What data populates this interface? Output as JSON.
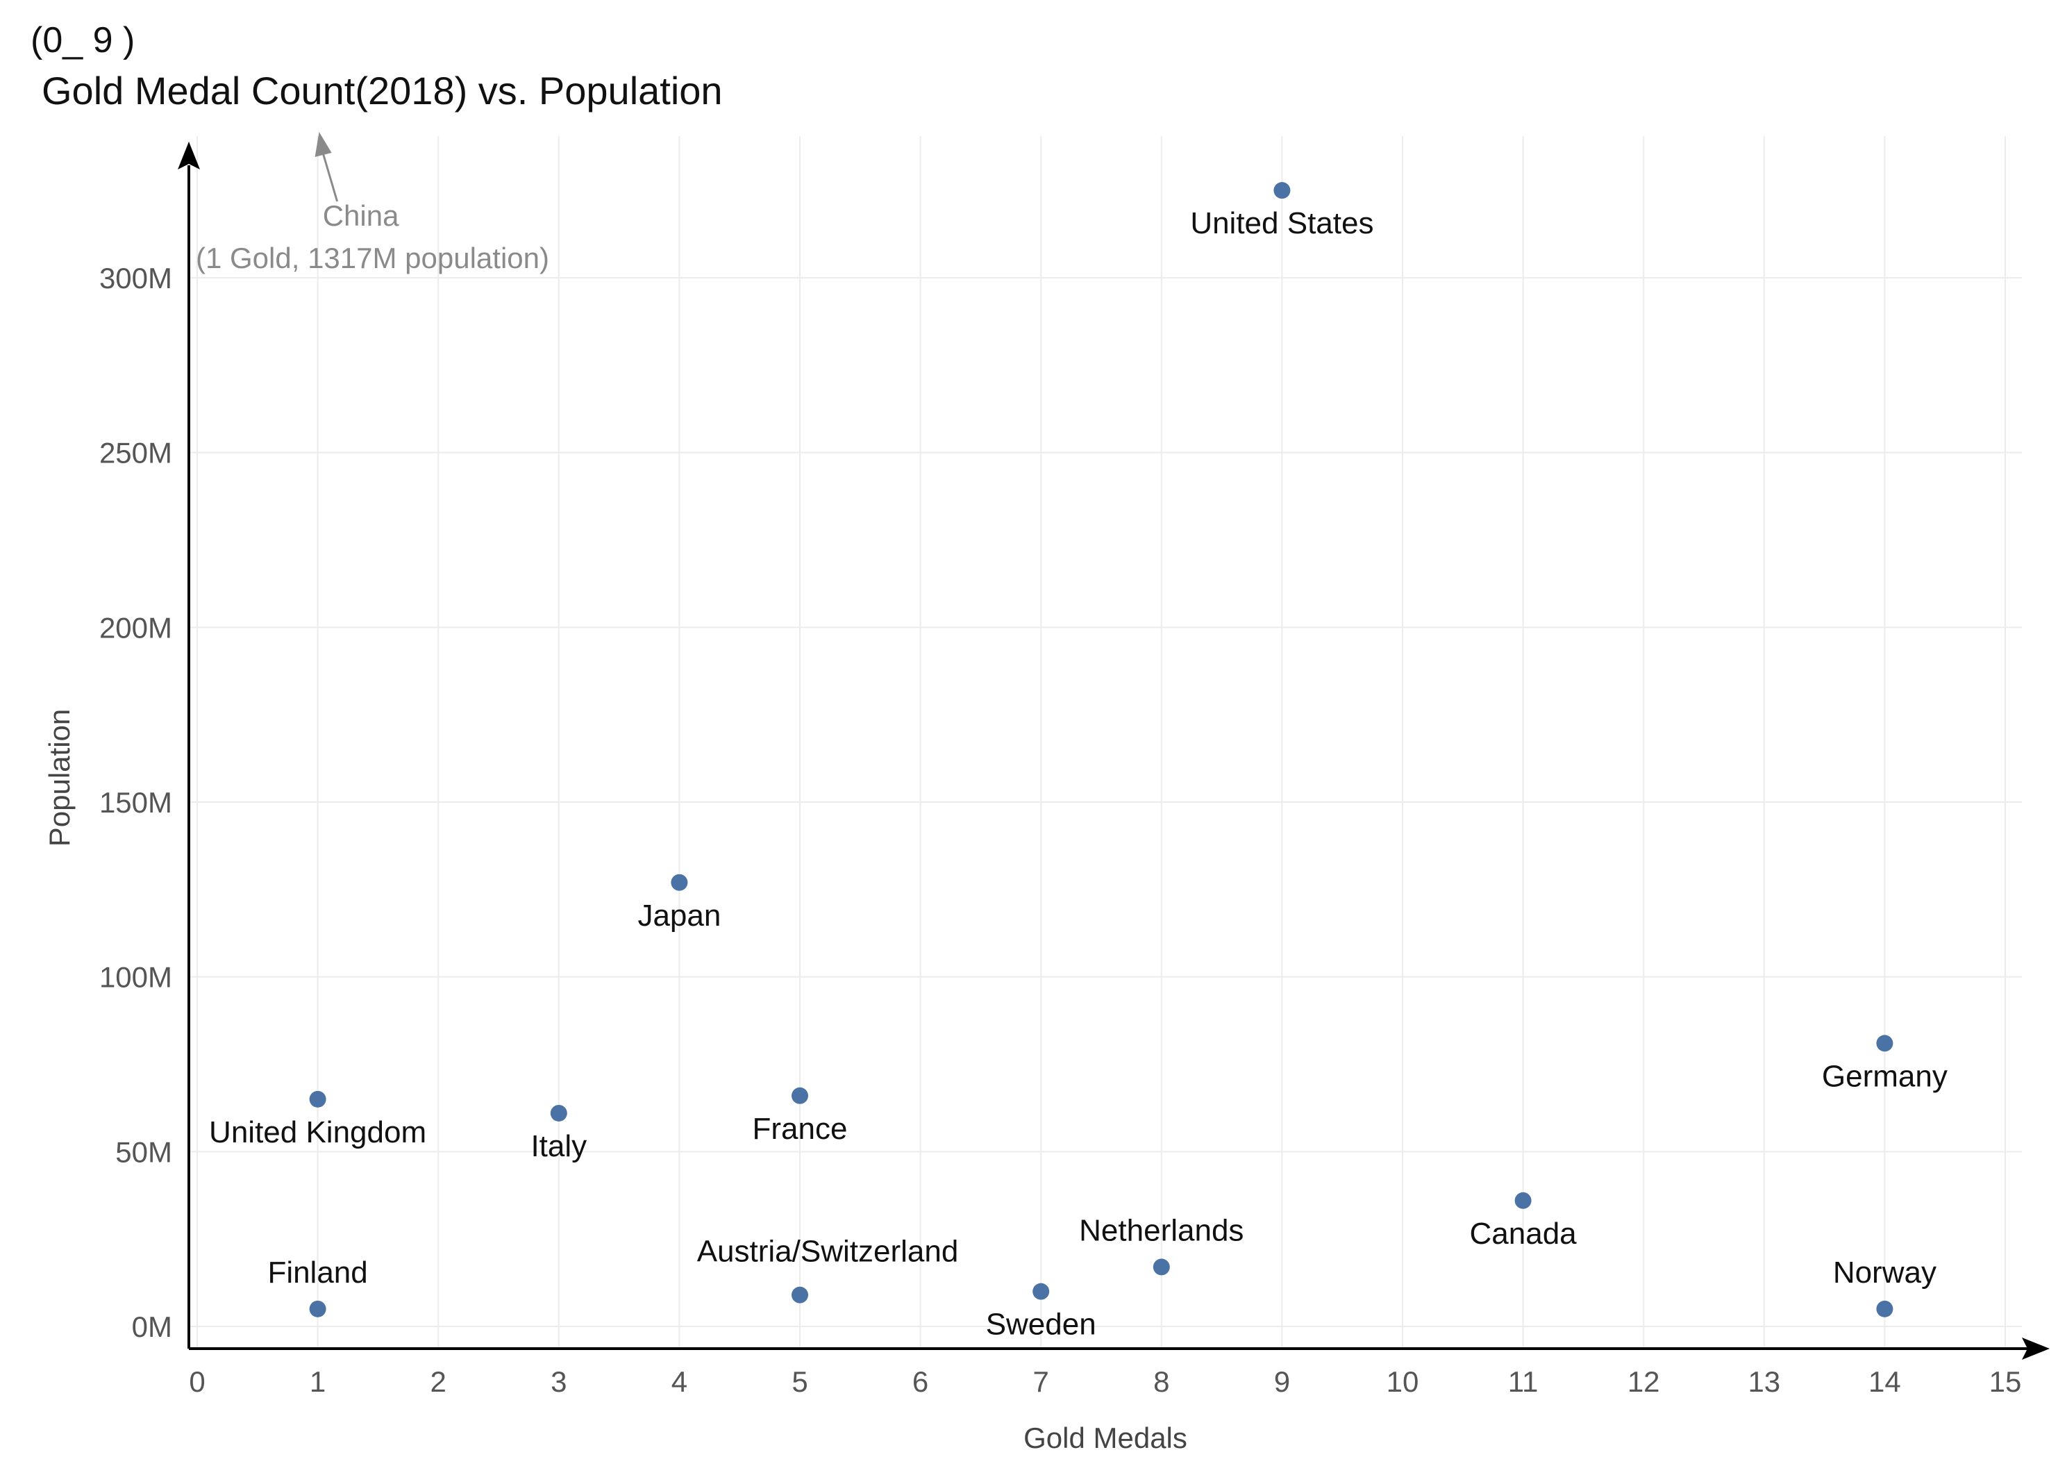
{
  "figure_id": "(0_ 9 )",
  "chart_data": {
    "type": "scatter",
    "title": "Gold Medal Count(2018) vs. Population",
    "xlabel": "Gold Medals",
    "ylabel": "Population",
    "xlim": [
      0,
      15
    ],
    "ylim": [
      0,
      300
    ],
    "x_ticks": [
      0,
      1,
      2,
      3,
      4,
      5,
      6,
      7,
      8,
      9,
      10,
      11,
      12,
      13,
      14,
      15
    ],
    "y_ticks": [
      {
        "value": 0,
        "label": "0M"
      },
      {
        "value": 50,
        "label": "50M"
      },
      {
        "value": 100,
        "label": "100M"
      },
      {
        "value": 150,
        "label": "150M"
      },
      {
        "value": 200,
        "label": "200M"
      },
      {
        "value": 250,
        "label": "250M"
      },
      {
        "value": 300,
        "label": "300M"
      }
    ],
    "y_unit": "M",
    "grid": true,
    "point_color": "#4a72a5",
    "points": [
      {
        "label": "United States",
        "x": 9,
        "y": 325,
        "label_pos": "below"
      },
      {
        "label": "Japan",
        "x": 4,
        "y": 127,
        "label_pos": "below"
      },
      {
        "label": "Germany",
        "x": 14,
        "y": 81,
        "label_pos": "below"
      },
      {
        "label": "United Kingdom",
        "x": 1,
        "y": 65,
        "label_pos": "below"
      },
      {
        "label": "France",
        "x": 5,
        "y": 66,
        "label_pos": "below"
      },
      {
        "label": "Italy",
        "x": 3,
        "y": 61,
        "label_pos": "below"
      },
      {
        "label": "Canada",
        "x": 11,
        "y": 36,
        "label_pos": "below"
      },
      {
        "label": "Netherlands",
        "x": 8,
        "y": 17,
        "label_pos": "above"
      },
      {
        "label": "Sweden",
        "x": 7,
        "y": 10,
        "label_pos": "below"
      },
      {
        "label": "Finland",
        "x": 1,
        "y": 5,
        "label_pos": "above"
      },
      {
        "label": "Norway",
        "x": 14,
        "y": 5,
        "label_pos": "above"
      },
      {
        "label": "Austria/Switzerland",
        "x": 5,
        "y": 9,
        "label_pos": "above-right"
      }
    ],
    "annotations": [
      {
        "text_lines": [
          "China",
          "(1 Gold, 1317M population)"
        ],
        "x": 1,
        "y": 1317,
        "off_scale": true
      }
    ]
  }
}
